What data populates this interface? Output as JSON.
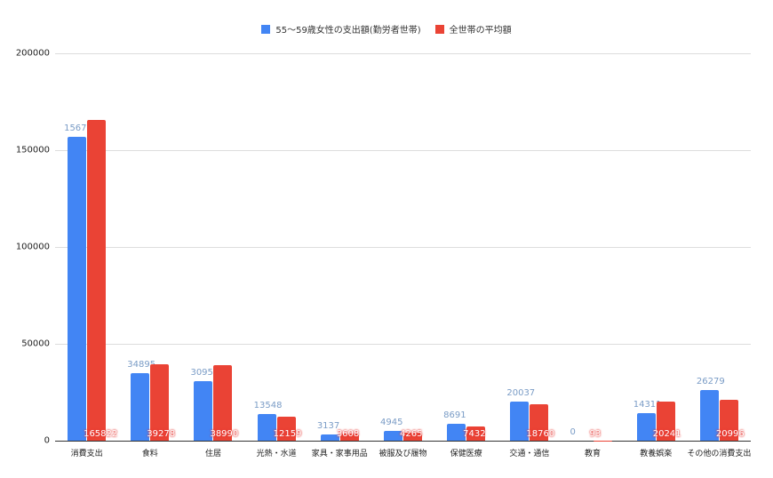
{
  "chart_data": {
    "type": "bar",
    "title": "",
    "xlabel": "",
    "ylabel": "",
    "ylim": [
      0,
      200000
    ],
    "yticks": [
      0,
      50000,
      100000,
      150000,
      200000
    ],
    "ytick_labels": [
      "0",
      "50000",
      "100000",
      "150000",
      "200000"
    ],
    "grid": true,
    "legend_position": "top",
    "categories": [
      "消費支出",
      "食料",
      "住居",
      "光熱・水道",
      "家具・家事用品",
      "被服及び履物",
      "保健医療",
      "交通・通信",
      "教育",
      "教養娯楽",
      "その他の消費支出"
    ],
    "series": [
      {
        "name": "55～59歳女性の支出額(勤労者世帯)",
        "color": "#4285f4",
        "values": [
          156797,
          34895,
          30954,
          13548,
          3137,
          4945,
          8691,
          20037,
          0,
          14311,
          26279
        ]
      },
      {
        "name": "全世帯の平均額",
        "color": "#ea4335",
        "values": [
          165822,
          39278,
          38990,
          12159,
          3608,
          4265,
          7432,
          18760,
          93,
          20241,
          20996
        ]
      }
    ]
  }
}
